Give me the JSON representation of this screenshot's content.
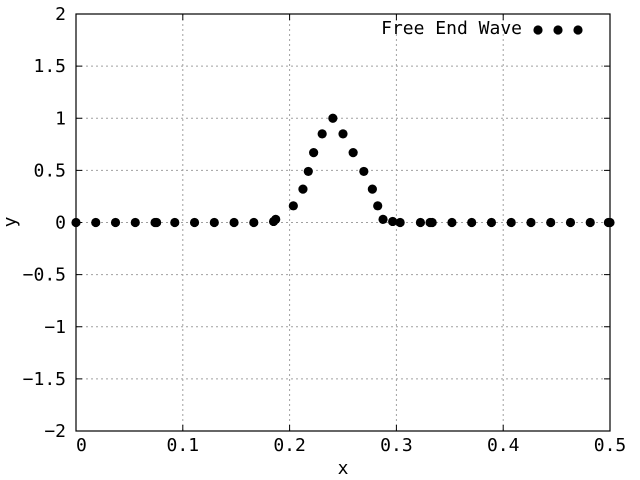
{
  "chart_data": {
    "type": "scatter",
    "xlabel": "x",
    "ylabel": "y",
    "xlim": [
      0,
      0.5
    ],
    "ylim": [
      -2,
      2
    ],
    "grid": true,
    "legend_position": "top-right",
    "x_ticks": [
      "0",
      "0.1",
      "0.2",
      "0.3",
      "0.4",
      "0.5"
    ],
    "y_ticks": [
      "−2",
      "−1.5",
      "−1",
      "−0.5",
      "0",
      "0.5",
      "1",
      "1.5",
      "2"
    ],
    "series": [
      {
        "name": "Free End Wave",
        "color": "#000000",
        "marker": "filled-circle",
        "x": [
          0.0,
          0.0185,
          0.037,
          0.0555,
          0.074,
          0.0755,
          0.0925,
          0.111,
          0.1295,
          0.148,
          0.1665,
          0.185,
          0.187,
          0.2035,
          0.2125,
          0.2175,
          0.2225,
          0.2305,
          0.2405,
          0.25,
          0.2595,
          0.2695,
          0.2775,
          0.2825,
          0.2875,
          0.2965,
          0.3035,
          0.3225,
          0.3315,
          0.3335,
          0.352,
          0.3705,
          0.389,
          0.4075,
          0.426,
          0.4445,
          0.463,
          0.4815,
          0.4985,
          0.5
        ],
        "y": [
          0,
          0,
          0,
          0,
          0,
          0,
          0,
          0,
          0,
          0,
          0,
          0.01,
          0.03,
          0.16,
          0.32,
          0.49,
          0.67,
          0.85,
          1.0,
          0.85,
          0.67,
          0.49,
          0.32,
          0.16,
          0.03,
          0.01,
          0,
          0,
          0,
          0,
          0,
          0,
          0,
          0,
          0,
          0,
          0,
          0,
          0,
          0
        ]
      }
    ]
  }
}
